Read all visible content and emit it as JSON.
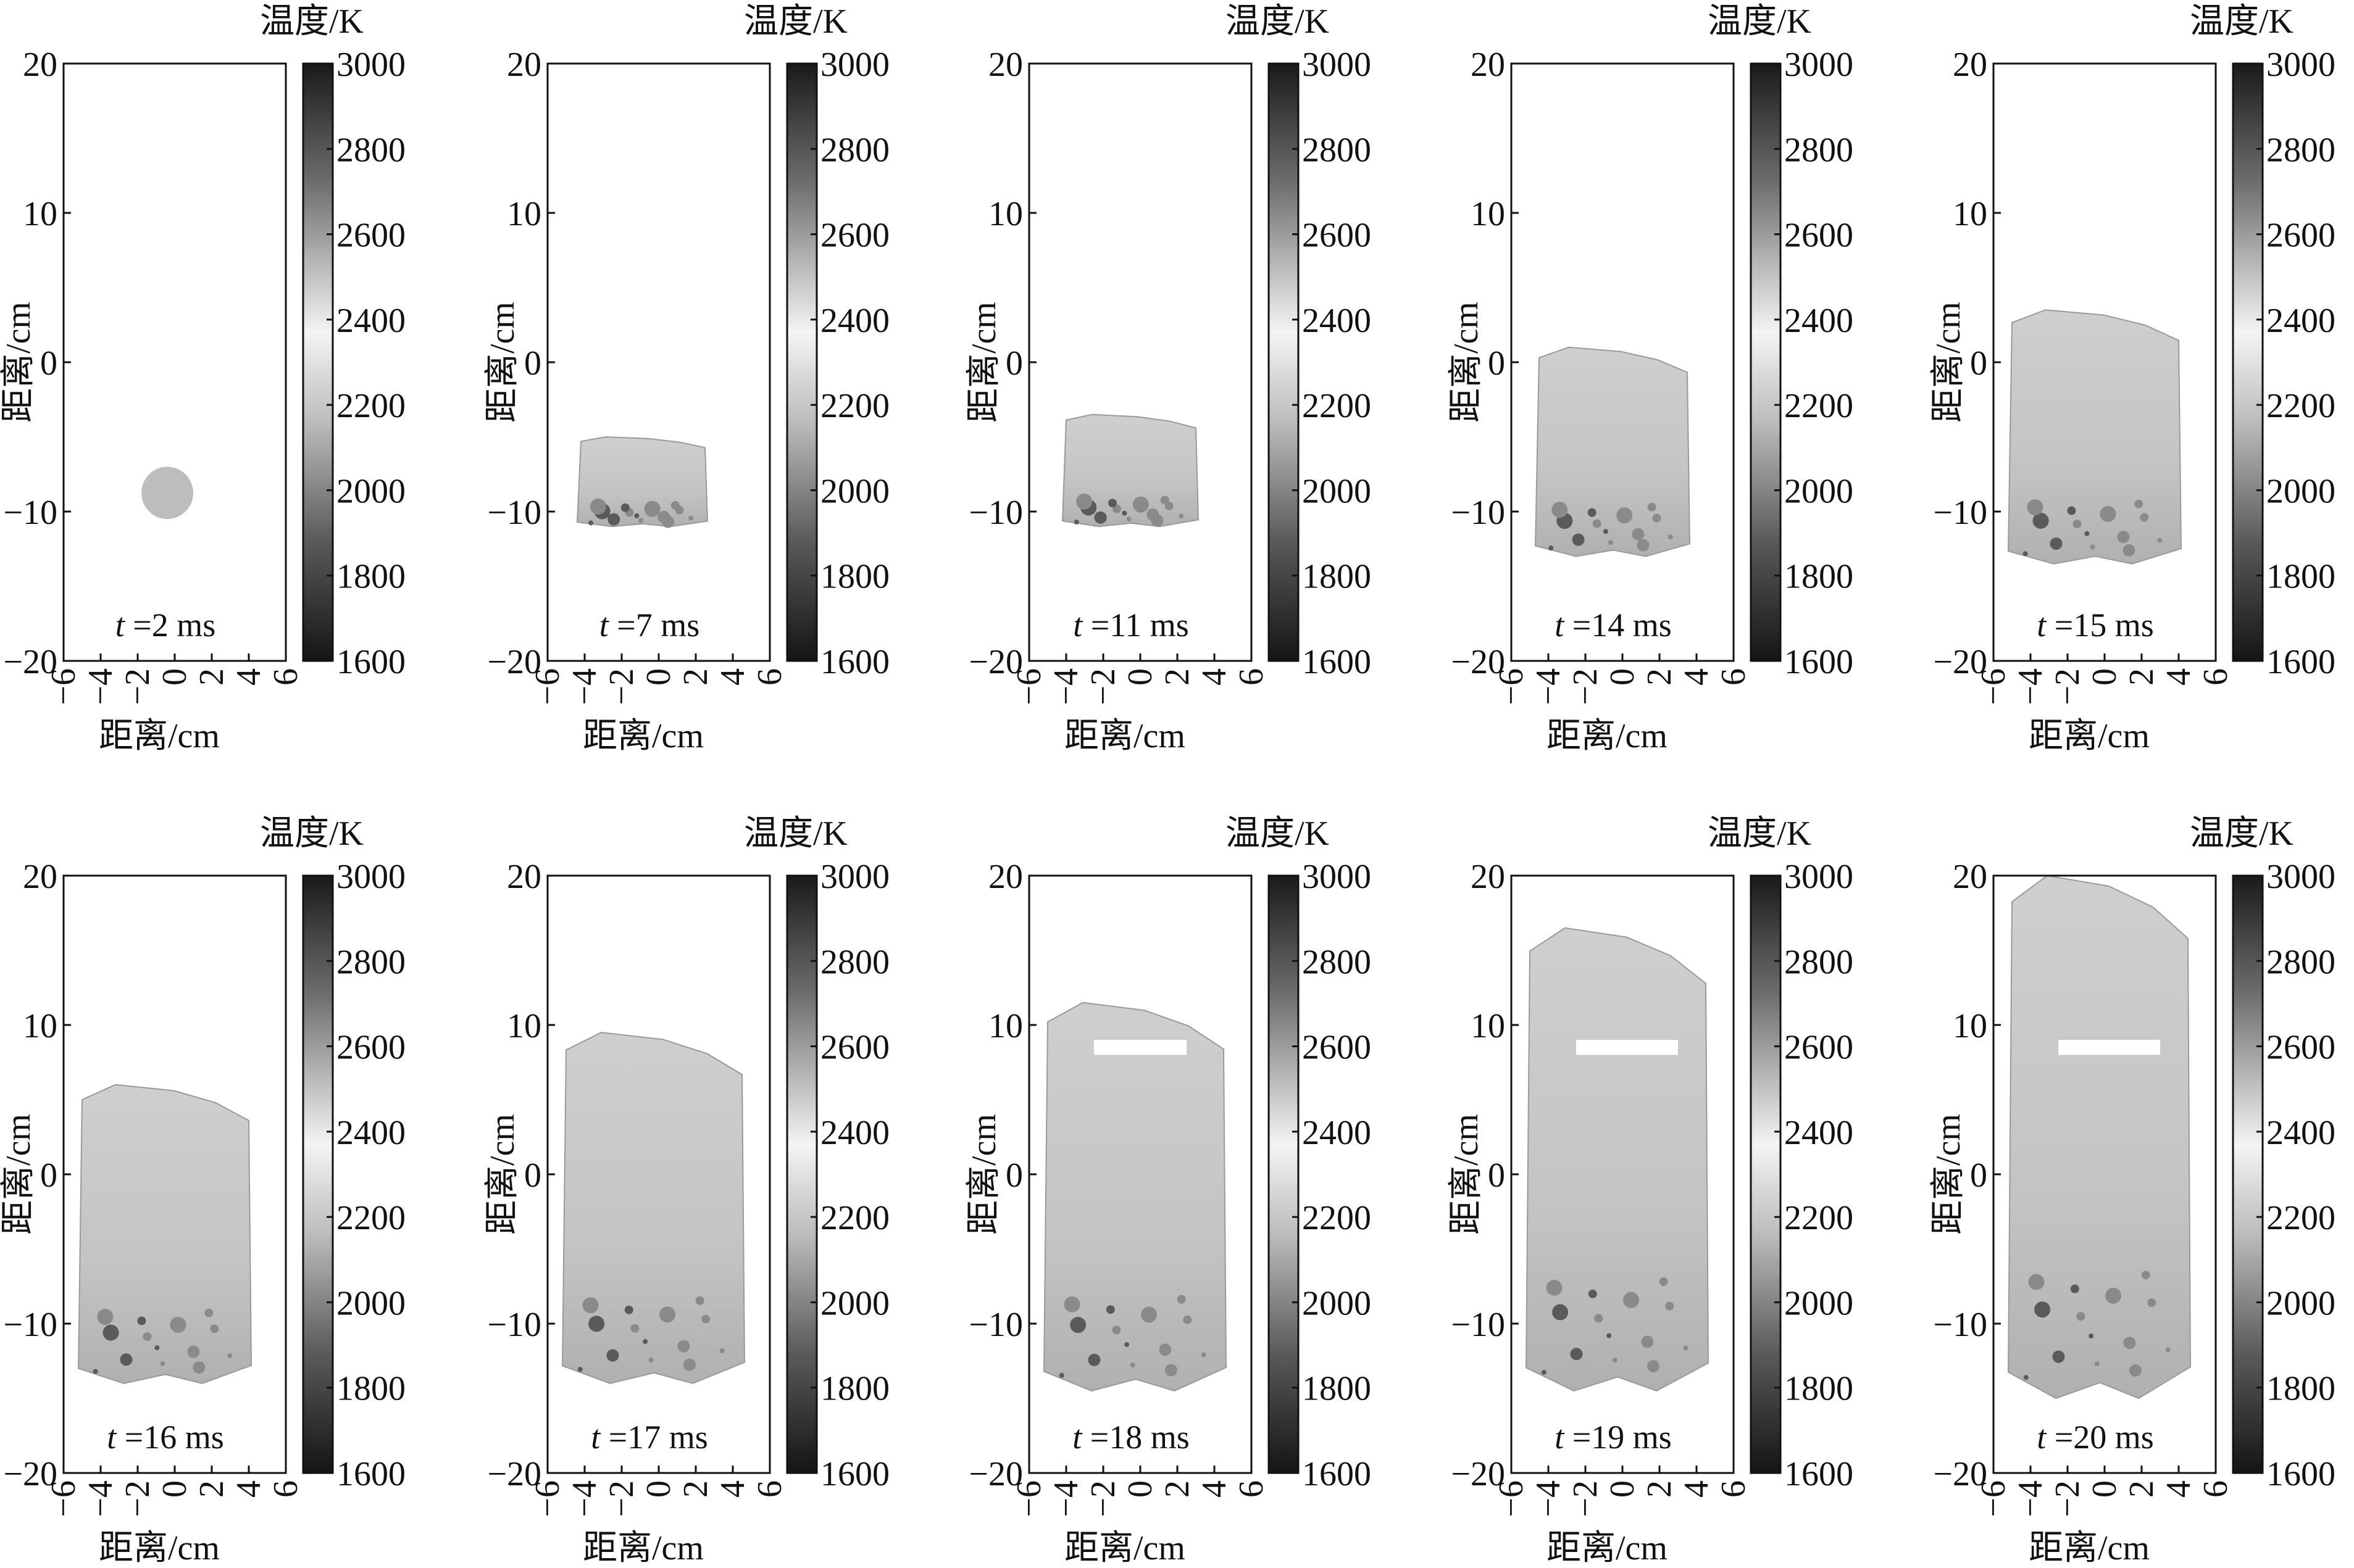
{
  "chart_data": {
    "type": "heatmap",
    "x_ticks": [
      "−6",
      "−4",
      "−2",
      "0",
      "2",
      "4",
      "6"
    ],
    "y_ticks": [
      "20",
      "10",
      "0",
      "−10",
      "−20"
    ],
    "colorbar_ticks": [
      "3000",
      "2800",
      "2600",
      "2400",
      "2200",
      "2000",
      "1800",
      "1600"
    ],
    "xlabel": "距离/cm",
    "ylabel": "距离/cm",
    "colorbar_title": "温度/K",
    "xlim": [
      -6,
      6
    ],
    "ylim": [
      -20,
      20
    ],
    "clim": [
      1600,
      3000
    ],
    "time_prefix": "t",
    "panels": [
      {
        "time": "=2 ms",
        "top": -7,
        "bottom": -10.5,
        "xl": -1.8,
        "xr": 1.0,
        "cut": null
      },
      {
        "time": "=7 ms",
        "top": -5,
        "bottom": -11,
        "xl": -4.2,
        "xr": 2.5,
        "cut": null
      },
      {
        "time": "=11 ms",
        "top": -3.5,
        "bottom": -11,
        "xl": -4.0,
        "xr": 3.0,
        "cut": null
      },
      {
        "time": "=14 ms",
        "top": 1,
        "bottom": -13,
        "xl": -4.5,
        "xr": 3.5,
        "cut": null
      },
      {
        "time": "=15 ms",
        "top": 3.5,
        "bottom": -13.5,
        "xl": -5.0,
        "xr": 4.0,
        "cut": null
      },
      {
        "time": "=16 ms",
        "top": 6,
        "bottom": -14,
        "xl": -5.0,
        "xr": 4.0,
        "cut": null
      },
      {
        "time": "=17 ms",
        "top": 9.5,
        "bottom": -14,
        "xl": -5.0,
        "xr": 4.5,
        "cut": null
      },
      {
        "time": "=18 ms",
        "top": 11.5,
        "bottom": -14.5,
        "xl": -5.0,
        "xr": 4.5,
        "cut": [
          -2.5,
          2.5,
          8,
          9
        ]
      },
      {
        "time": "=19 ms",
        "top": 16.5,
        "bottom": -14.5,
        "xl": -5.0,
        "xr": 4.5,
        "cut": [
          -2.5,
          3.0,
          8,
          9
        ]
      },
      {
        "time": "=20 ms",
        "top": 20,
        "bottom": -15,
        "xl": -5.0,
        "xr": 4.5,
        "cut": [
          -2.5,
          3.0,
          8,
          9
        ]
      }
    ]
  }
}
